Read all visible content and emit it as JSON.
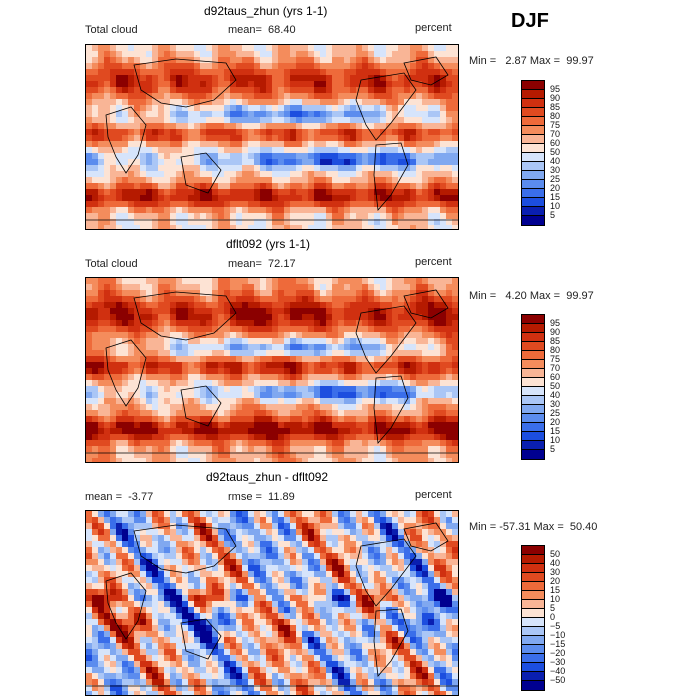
{
  "season": "DJF",
  "panels": [
    {
      "title": "d92taus_zhun (yrs 1-1)",
      "left_label": "Total cloud",
      "mean_text": "mean=  68.40",
      "units": "percent",
      "minmax": "Min =   2.87 Max =  99.97",
      "colorbar": {
        "labels": [
          "95",
          "90",
          "85",
          "80",
          "75",
          "70",
          "60",
          "50",
          "40",
          "30",
          "25",
          "20",
          "15",
          "10",
          "5"
        ],
        "colors": [
          "#8b0000",
          "#b51a00",
          "#d03010",
          "#e04a20",
          "#ee6a3a",
          "#f48c5c",
          "#f9b596",
          "#fde3d4",
          "#d6e4fb",
          "#aac6f6",
          "#80a8f0",
          "#5b8cee",
          "#3a6eea",
          "#1c4edf",
          "#0a1fb0",
          "#000090"
        ]
      },
      "palette": [
        "#000090",
        "#0a1fb0",
        "#1c4edf",
        "#3a6eea",
        "#5b8cee",
        "#80a8f0",
        "#aac6f6",
        "#d6e4fb",
        "#fde3d4",
        "#f9b596",
        "#f48c5c",
        "#ee6a3a",
        "#e04a20",
        "#d03010",
        "#b51a00",
        "#8b0000"
      ]
    },
    {
      "title": "dflt092 (yrs 1-1)",
      "left_label": "Total cloud",
      "mean_text": "mean=  72.17",
      "units": "percent",
      "minmax": "Min =   4.20 Max =  99.97",
      "colorbar": {
        "labels": [
          "95",
          "90",
          "85",
          "80",
          "75",
          "70",
          "60",
          "50",
          "40",
          "30",
          "25",
          "20",
          "15",
          "10",
          "5"
        ],
        "colors": [
          "#8b0000",
          "#b51a00",
          "#d03010",
          "#e04a20",
          "#ee6a3a",
          "#f48c5c",
          "#f9b596",
          "#fde3d4",
          "#d6e4fb",
          "#aac6f6",
          "#80a8f0",
          "#5b8cee",
          "#3a6eea",
          "#1c4edf",
          "#0a1fb0",
          "#000090"
        ]
      },
      "palette": [
        "#000090",
        "#0a1fb0",
        "#1c4edf",
        "#3a6eea",
        "#5b8cee",
        "#80a8f0",
        "#aac6f6",
        "#d6e4fb",
        "#fde3d4",
        "#f9b596",
        "#f48c5c",
        "#ee6a3a",
        "#e04a20",
        "#d03010",
        "#b51a00",
        "#8b0000"
      ]
    },
    {
      "title": "d92taus_zhun - dflt092",
      "left_label": "mean =  -3.77",
      "mean_text": "rmse =  11.89",
      "units": "percent",
      "minmax": "Min = -57.31 Max =  50.40",
      "colorbar": {
        "labels": [
          "50",
          "40",
          "30",
          "20",
          "15",
          "10",
          "5",
          "0",
          "−5",
          "−10",
          "−15",
          "−20",
          "−30",
          "−40",
          "−50"
        ],
        "colors": [
          "#8b0000",
          "#b51a00",
          "#d03010",
          "#e04a20",
          "#ee6a3a",
          "#f48c5c",
          "#f9b596",
          "#fde3d4",
          "#d6e4fb",
          "#aac6f6",
          "#80a8f0",
          "#5b8cee",
          "#3a6eea",
          "#1c4edf",
          "#0a1fb0",
          "#000090"
        ]
      },
      "palette": [
        "#000090",
        "#0a1fb0",
        "#1c4edf",
        "#3a6eea",
        "#5b8cee",
        "#80a8f0",
        "#aac6f6",
        "#d6e4fb",
        "#fde3d4",
        "#f9b596",
        "#f48c5c",
        "#ee6a3a",
        "#e04a20",
        "#d03010",
        "#b51a00",
        "#8b0000"
      ]
    }
  ]
}
